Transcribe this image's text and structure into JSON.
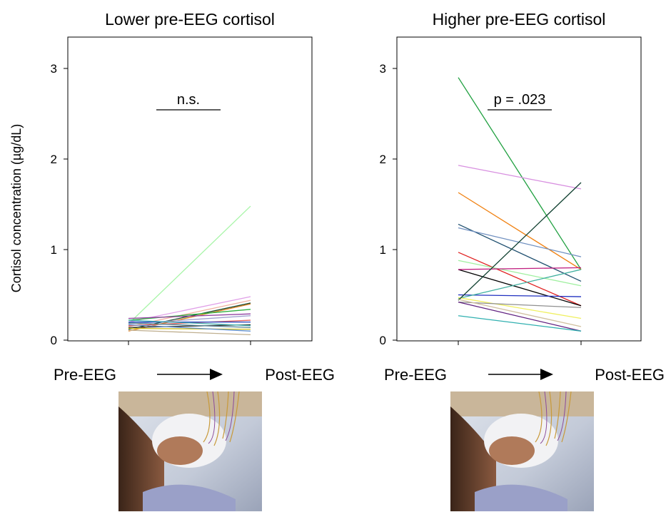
{
  "chart_data": [
    {
      "type": "line",
      "title": "Lower pre-EEG cortisol",
      "ylabel": "Cortisol concentration (µg/dL)",
      "x_categories": [
        "Pre-EEG",
        "Post-EEG"
      ],
      "ylim": [
        0,
        3.3
      ],
      "yticks": [
        "0",
        "1",
        "2",
        "3"
      ],
      "grid": false,
      "annotation": "n.s.",
      "series": [
        {
          "values": [
            0.18,
            1.48
          ],
          "color": "#a8f5a8"
        },
        {
          "values": [
            0.2,
            0.48
          ],
          "color": "#e0a0e8"
        },
        {
          "values": [
            0.15,
            0.44
          ],
          "color": "#f0b0a0"
        },
        {
          "values": [
            0.12,
            0.41
          ],
          "color": "#1a4a30"
        },
        {
          "values": [
            0.1,
            0.4
          ],
          "color": "#e08020"
        },
        {
          "values": [
            0.22,
            0.34
          ],
          "color": "#30b040"
        },
        {
          "values": [
            0.24,
            0.29
          ],
          "color": "#9040a0"
        },
        {
          "values": [
            0.18,
            0.27
          ],
          "color": "#a0a0d0"
        },
        {
          "values": [
            0.16,
            0.22
          ],
          "color": "#e06060"
        },
        {
          "values": [
            0.2,
            0.2
          ],
          "color": "#2040c0"
        },
        {
          "values": [
            0.14,
            0.17
          ],
          "color": "#303030"
        },
        {
          "values": [
            0.22,
            0.16
          ],
          "color": "#40b0b0"
        },
        {
          "values": [
            0.19,
            0.14
          ],
          "color": "#508090"
        },
        {
          "values": [
            0.13,
            0.12
          ],
          "color": "#d0c020"
        },
        {
          "values": [
            0.17,
            0.1
          ],
          "color": "#6090d0"
        },
        {
          "values": [
            0.11,
            0.06
          ],
          "color": "#c0b090"
        }
      ]
    },
    {
      "type": "line",
      "title": "Higher pre-EEG cortisol",
      "ylabel": "",
      "x_categories": [
        "Pre-EEG",
        "Post-EEG"
      ],
      "ylim": [
        0,
        3.3
      ],
      "yticks": [
        "0",
        "1",
        "2",
        "3"
      ],
      "grid": false,
      "annotation": "p = .023",
      "series": [
        {
          "values": [
            2.9,
            0.78
          ],
          "color": "#20a040"
        },
        {
          "values": [
            1.93,
            1.67
          ],
          "color": "#d890e0"
        },
        {
          "values": [
            1.63,
            0.78
          ],
          "color": "#f08010"
        },
        {
          "values": [
            1.28,
            0.65
          ],
          "color": "#205070"
        },
        {
          "values": [
            1.24,
            0.92
          ],
          "color": "#7090c0"
        },
        {
          "values": [
            0.97,
            0.38
          ],
          "color": "#e02020"
        },
        {
          "values": [
            0.88,
            0.6
          ],
          "color": "#a0f0a0"
        },
        {
          "values": [
            0.78,
            0.38
          ],
          "color": "#000000"
        },
        {
          "values": [
            0.78,
            0.8
          ],
          "color": "#c02080"
        },
        {
          "values": [
            0.5,
            0.48
          ],
          "color": "#2030c0"
        },
        {
          "values": [
            0.46,
            0.78
          ],
          "color": "#40b0a0"
        },
        {
          "values": [
            0.47,
            0.24
          ],
          "color": "#f0f060"
        },
        {
          "values": [
            0.42,
            0.36
          ],
          "color": "#909090"
        },
        {
          "values": [
            0.44,
            1.74
          ],
          "color": "#104030"
        },
        {
          "values": [
            0.42,
            0.1
          ],
          "color": "#602080"
        },
        {
          "values": [
            0.27,
            0.1
          ],
          "color": "#30b0b0"
        },
        {
          "values": [
            0.45,
            0.15
          ],
          "color": "#d0c0a0"
        }
      ]
    }
  ],
  "icons": {
    "arrow": "right-arrow-icon",
    "photo": "infant-eeg-photo"
  }
}
